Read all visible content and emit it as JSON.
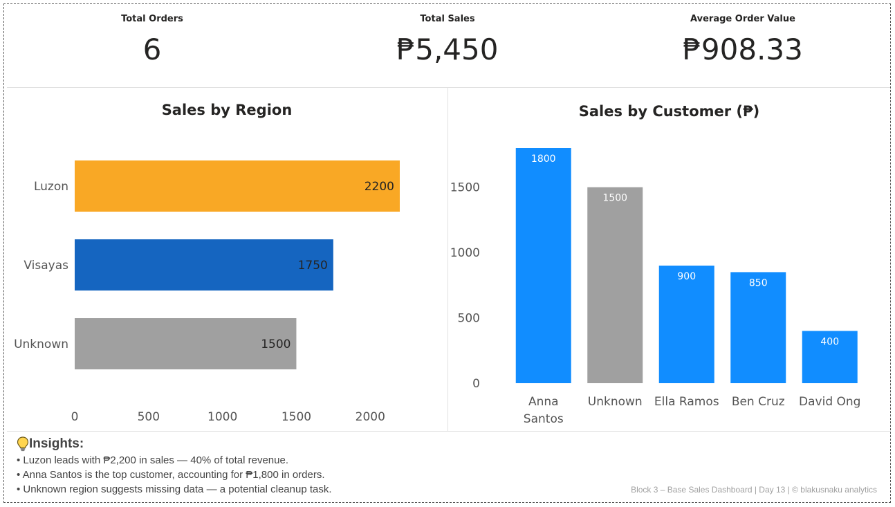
{
  "kpis": [
    {
      "label": "Total Orders",
      "value": "6"
    },
    {
      "label": "Total Sales",
      "value": "₱5,450"
    },
    {
      "label": "Average Order Value",
      "value": "₱908.33"
    }
  ],
  "chart_data": [
    {
      "type": "bar",
      "orientation": "horizontal",
      "title": "Sales by Region",
      "categories": [
        "Luzon",
        "Visayas",
        "Unknown"
      ],
      "values": [
        2200,
        1750,
        1500
      ],
      "colors": [
        "#F9A825",
        "#1565C0",
        "#A0A0A0"
      ],
      "xticks": [
        0,
        500,
        1000,
        1500,
        2000
      ],
      "xlim": [
        0,
        2400
      ],
      "data_labels": true,
      "grid": false
    },
    {
      "type": "bar",
      "orientation": "vertical",
      "title": "Sales by Customer (₱)",
      "categories": [
        "Anna Santos",
        "Unknown",
        "Ella Ramos",
        "Ben Cruz",
        "David Ong"
      ],
      "values": [
        1800,
        1500,
        900,
        850,
        400
      ],
      "colors": [
        "#118DFF",
        "#A0A0A0",
        "#118DFF",
        "#118DFF",
        "#118DFF"
      ],
      "yticks": [
        0,
        500,
        1000,
        1500
      ],
      "ylim": [
        0,
        1900
      ],
      "data_labels": true,
      "grid": false
    }
  ],
  "insights": {
    "title": "Insights:",
    "icon": "lightbulb-icon",
    "items": [
      "• Luzon leads with ₱2,200 in sales — 40% of total revenue.",
      "• Anna Santos is the top customer, accounting for ₱1,800 in orders.",
      "• Unknown region suggests missing data — a potential cleanup task."
    ]
  },
  "footer": "Block 3 – Base Sales Dashboard | Day 13 | © blakusnaku analytics"
}
